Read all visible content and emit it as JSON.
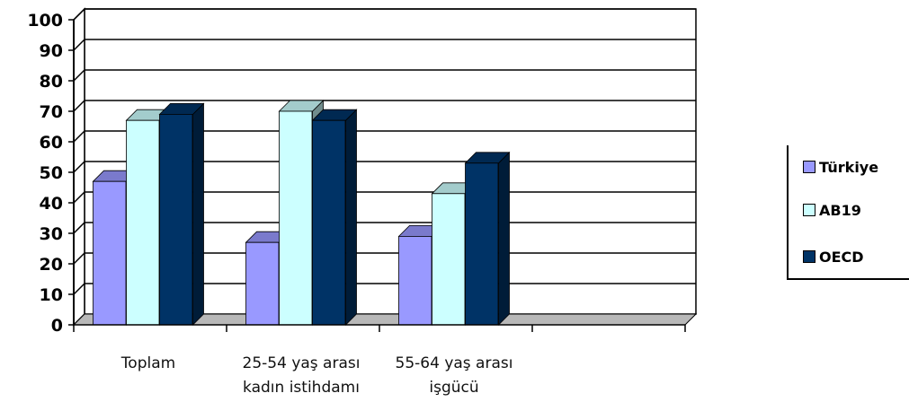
{
  "chart_data": {
    "type": "bar",
    "categories": [
      [
        "Toplam"
      ],
      [
        "25-54 yaş arası",
        "kadın istihdamı"
      ],
      [
        "55-64 yaş arası",
        "işgücü"
      ],
      [
        ""
      ]
    ],
    "series": [
      {
        "name": "Türkiye",
        "color": "#9999ff",
        "values": [
          47,
          27,
          29,
          null
        ]
      },
      {
        "name": "AB19",
        "color": "#ccffff",
        "values": [
          67,
          70,
          43,
          null
        ]
      },
      {
        "name": "OECD",
        "color": "#003366",
        "values": [
          69,
          67,
          53,
          null
        ]
      }
    ],
    "ylim": [
      0,
      100
    ],
    "yticks": [
      "0",
      "10",
      "20",
      "30",
      "40",
      "50",
      "60",
      "70",
      "80",
      "90",
      "100"
    ],
    "grid": true,
    "legend_position": "right",
    "three_d": true
  }
}
